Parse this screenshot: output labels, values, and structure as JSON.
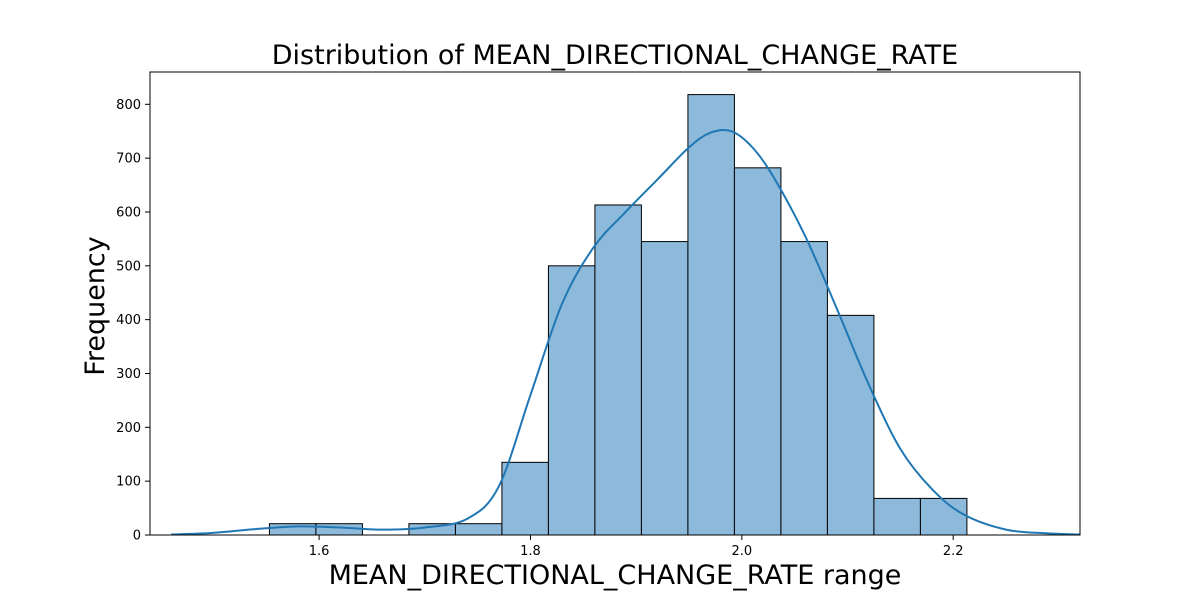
{
  "chart_data": {
    "type": "bar",
    "title": "Distribution of MEAN_DIRECTIONAL_CHANGE_RATE",
    "xlabel": "MEAN_DIRECTIONAL_CHANGE_RATE range",
    "ylabel": "Frequency",
    "xlim": [
      1.44,
      2.32
    ],
    "ylim": [
      0,
      860
    ],
    "x_ticks": [
      1.6,
      1.8,
      2.0,
      2.2
    ],
    "x_tick_labels": [
      "1.6",
      "1.8",
      "2.0",
      "2.2"
    ],
    "y_ticks": [
      0,
      100,
      200,
      300,
      400,
      500,
      600,
      700,
      800
    ],
    "y_tick_labels": [
      "0",
      "100",
      "200",
      "300",
      "400",
      "500",
      "600",
      "700",
      "800"
    ],
    "grid": false,
    "bin_edges": [
      1.553,
      1.597,
      1.641,
      1.685,
      1.729,
      1.773,
      1.817,
      1.861,
      1.905,
      1.949,
      1.993,
      2.037,
      2.081,
      2.125,
      2.169,
      2.213
    ],
    "values": [
      21,
      21,
      0,
      21,
      21,
      135,
      500,
      613,
      545,
      818,
      682,
      545,
      408,
      68,
      68
    ],
    "kde": {
      "x": [
        1.46,
        1.5,
        1.54,
        1.58,
        1.62,
        1.66,
        1.7,
        1.74,
        1.77,
        1.8,
        1.83,
        1.86,
        1.89,
        1.92,
        1.95,
        1.97,
        1.99,
        2.01,
        2.03,
        2.06,
        2.09,
        2.12,
        2.15,
        2.18,
        2.21,
        2.25,
        2.29,
        2.32
      ],
      "y": [
        1,
        4,
        11,
        16,
        14,
        10,
        14,
        30,
        90,
        260,
        430,
        535,
        600,
        660,
        720,
        747,
        750,
        720,
        665,
        555,
        420,
        280,
        160,
        85,
        38,
        10,
        3,
        1
      ]
    },
    "colors": {
      "bar_fill": "#8db9da",
      "bar_edge": "#000000",
      "kde_line": "#1f77b4"
    }
  }
}
